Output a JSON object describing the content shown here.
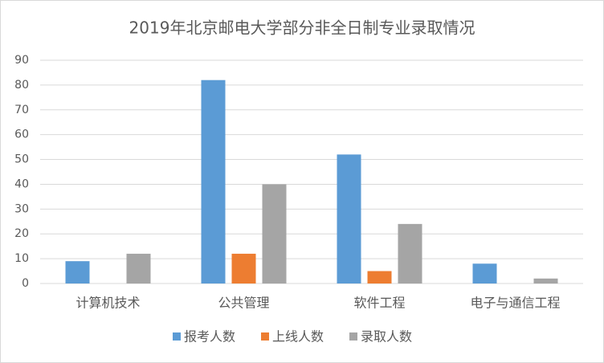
{
  "chart_data": {
    "type": "bar",
    "title": "2019年北京邮电大学部分非全日制专业录取情况",
    "categories": [
      "计算机技术",
      "公共管理",
      "软件工程",
      "电子与通信工程"
    ],
    "series": [
      {
        "name": "报考人数",
        "color": "#5b9bd5",
        "values": [
          9,
          82,
          52,
          8
        ]
      },
      {
        "name": "上线人数",
        "color": "#ed7d31",
        "values": [
          0,
          12,
          5,
          0
        ]
      },
      {
        "name": "录取人数",
        "color": "#a5a5a5",
        "values": [
          12,
          40,
          24,
          2
        ]
      }
    ],
    "ylim": [
      0,
      90
    ],
    "yticks": [
      0,
      10,
      20,
      30,
      40,
      50,
      60,
      70,
      80,
      90
    ],
    "grid": true,
    "legend": "bottom"
  }
}
